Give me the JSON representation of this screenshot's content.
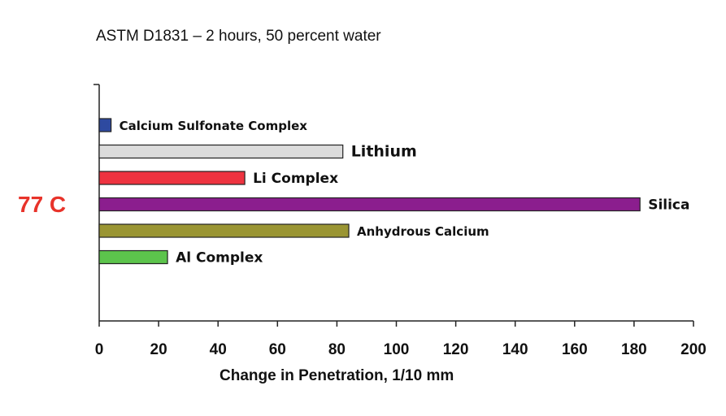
{
  "chart_data": {
    "type": "bar",
    "orientation": "horizontal",
    "title": "ASTM D1831 – 2 hours, 50 percent water",
    "side_label": "77 C",
    "xlabel": "Change in Penetration, 1/10 mm",
    "ylabel": "",
    "xlim": [
      0,
      200
    ],
    "xticks": [
      0,
      20,
      40,
      60,
      80,
      100,
      120,
      140,
      160,
      180,
      200
    ],
    "grid": false,
    "legend": "none",
    "categories": [
      "Calcium Sulfonate Complex",
      "Lithium",
      "Li Complex",
      "Silica",
      "Anhydrous Calcium",
      "Al Complex"
    ],
    "values": [
      4,
      82,
      49,
      182,
      84,
      23
    ],
    "colors": [
      "#2e4aa0",
      "#dcdcdc",
      "#ee3340",
      "#8b1e8e",
      "#9a9533",
      "#5cc44c"
    ]
  }
}
